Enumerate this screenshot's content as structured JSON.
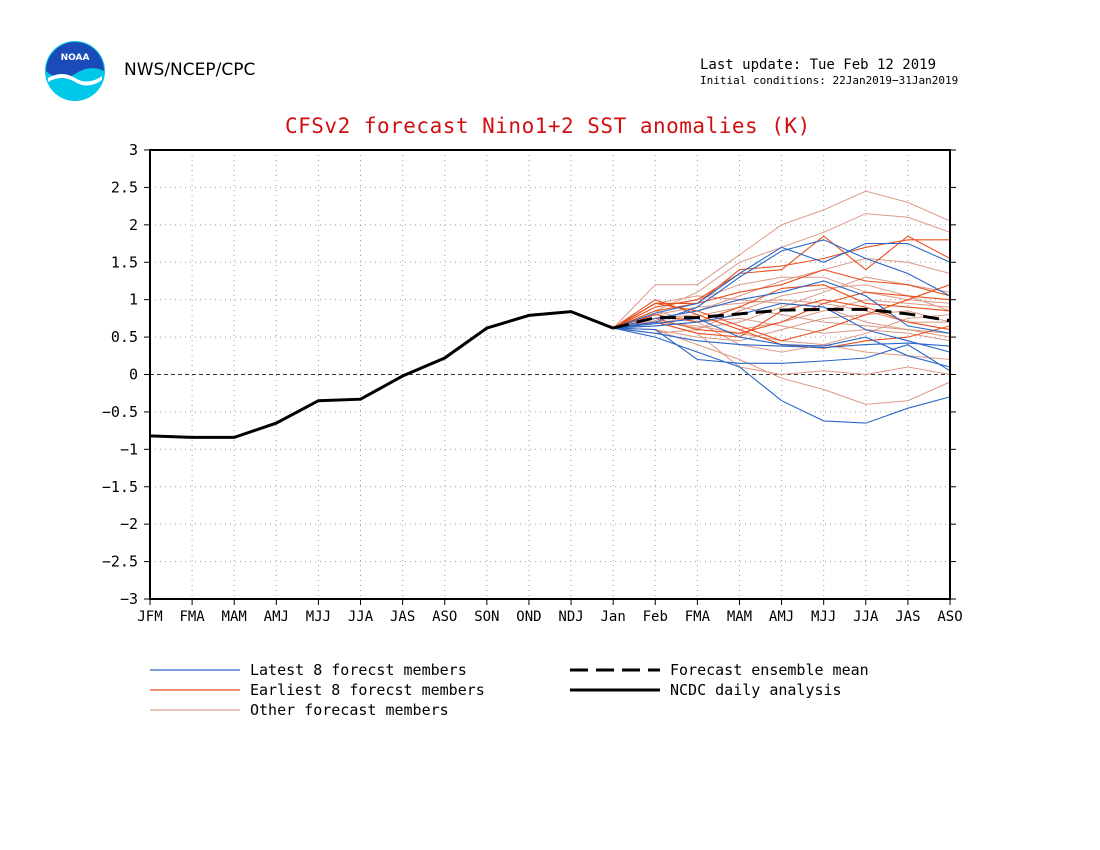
{
  "header": {
    "agency": "NWS/NCEP/CPC",
    "last_update": "Last update: Tue Feb 12 2019",
    "initial_conditions": "Initial conditions: 22Jan2019−31Jan2019",
    "logo_text": "NOAA"
  },
  "colors": {
    "title": "#d01010",
    "latest": "#2a66c8",
    "earliest": "#e8501e",
    "other": "#dc9a86",
    "analysis": "#000000",
    "grid": "#a0a0a0"
  },
  "legend": {
    "latest": "Latest 8 forecst members",
    "earliest": "Earliest 8 forecst members",
    "other": "Other forecast members",
    "mean": "Forecast ensemble mean",
    "analysis": "NCDC daily analysis"
  },
  "chart_data": {
    "type": "line",
    "title": "CFSv2 forecast Nino1+2 SST anomalies (K)",
    "categories": [
      "JFM",
      "FMA",
      "MAM",
      "AMJ",
      "MJJ",
      "JJA",
      "JAS",
      "ASO",
      "SON",
      "OND",
      "NDJ",
      "Jan",
      "Feb",
      "FMA",
      "MAM",
      "AMJ",
      "MJJ",
      "JJA",
      "JAS",
      "ASO"
    ],
    "ylim": [
      -3,
      3
    ],
    "yticks": [
      -3,
      -2.5,
      -2,
      -1.5,
      -1,
      -0.5,
      0,
      0.5,
      1,
      1.5,
      2,
      2.5,
      3
    ],
    "ytick_labels": [
      "−3",
      "−2.5",
      "−2",
      "−1.5",
      "−1",
      "−0.5",
      "0",
      "0.5",
      "1",
      "1.5",
      "2",
      "2.5",
      "3"
    ],
    "grid": true,
    "analysis": {
      "name": "NCDC daily analysis",
      "values": [
        -0.82,
        -0.84,
        -0.84,
        -0.65,
        -0.35,
        -0.33,
        -0.02,
        0.22,
        0.62,
        0.79,
        0.84,
        0.62
      ]
    },
    "ensemble_mean": {
      "name": "Forecast ensemble mean",
      "start_index": 11,
      "values": [
        0.62,
        0.76,
        0.76,
        0.81,
        0.86,
        0.87,
        0.87,
        0.81,
        0.72
      ]
    },
    "members": {
      "start_index": 11,
      "latest": [
        [
          0.62,
          0.55,
          0.45,
          0.4,
          0.38,
          0.36,
          0.4,
          0.42,
          0.38
        ],
        [
          0.62,
          0.5,
          0.3,
          0.1,
          -0.35,
          -0.62,
          -0.65,
          -0.45,
          -0.3
        ],
        [
          0.62,
          0.7,
          0.9,
          1.3,
          1.65,
          1.8,
          1.55,
          1.35,
          1.05
        ],
        [
          0.62,
          0.6,
          0.2,
          0.15,
          0.15,
          0.18,
          0.22,
          0.4,
          0.05
        ],
        [
          0.62,
          0.75,
          0.85,
          1.0,
          1.1,
          1.25,
          1.05,
          0.65,
          0.55
        ],
        [
          0.62,
          0.82,
          0.95,
          1.35,
          1.7,
          1.5,
          1.75,
          1.75,
          1.5
        ],
        [
          0.62,
          0.68,
          0.75,
          0.5,
          0.4,
          0.38,
          0.5,
          0.25,
          0.1
        ],
        [
          0.62,
          0.65,
          0.7,
          0.8,
          0.95,
          0.9,
          0.6,
          0.45,
          0.3
        ]
      ],
      "earliest": [
        [
          0.62,
          0.95,
          0.95,
          1.4,
          1.45,
          1.55,
          1.7,
          1.8,
          1.8
        ],
        [
          0.62,
          1.0,
          0.8,
          0.6,
          0.4,
          0.35,
          0.45,
          0.5,
          0.65
        ],
        [
          0.62,
          0.9,
          1.0,
          1.35,
          1.4,
          1.85,
          1.4,
          1.85,
          1.55
        ],
        [
          0.62,
          0.8,
          0.7,
          0.9,
          1.15,
          1.2,
          0.95,
          0.9,
          0.85
        ],
        [
          0.62,
          0.75,
          0.6,
          0.55,
          0.7,
          0.95,
          1.1,
          1.05,
          1.0
        ],
        [
          0.62,
          0.95,
          0.85,
          0.65,
          0.45,
          0.6,
          0.8,
          1.0,
          1.2
        ],
        [
          0.62,
          0.85,
          0.95,
          1.1,
          1.2,
          1.4,
          1.25,
          1.2,
          1.05
        ],
        [
          0.62,
          0.7,
          0.55,
          0.5,
          0.85,
          1.0,
          0.9,
          0.7,
          0.6
        ]
      ],
      "other": [
        [
          0.62,
          1.2,
          1.2,
          1.6,
          2.0,
          2.2,
          2.45,
          2.3,
          2.05
        ],
        [
          0.62,
          0.85,
          1.1,
          1.5,
          1.7,
          1.9,
          2.15,
          2.1,
          1.9
        ],
        [
          0.62,
          0.6,
          0.4,
          0.2,
          -0.05,
          -0.2,
          -0.4,
          -0.35,
          -0.1
        ],
        [
          0.62,
          0.7,
          0.55,
          0.1,
          0.0,
          0.05,
          0.0,
          0.1,
          0.0
        ],
        [
          0.62,
          0.75,
          0.8,
          0.6,
          0.7,
          0.85,
          1.0,
          0.95,
          0.9
        ],
        [
          0.62,
          0.9,
          1.0,
          1.2,
          1.3,
          1.3,
          1.1,
          1.0,
          0.95
        ],
        [
          0.62,
          0.65,
          0.7,
          0.75,
          0.65,
          0.55,
          0.6,
          0.55,
          0.45
        ],
        [
          0.62,
          0.8,
          0.9,
          0.95,
          1.0,
          0.95,
          0.85,
          0.7,
          0.7
        ],
        [
          0.62,
          0.55,
          0.6,
          0.85,
          1.05,
          1.15,
          1.2,
          1.05,
          0.85
        ],
        [
          0.62,
          0.7,
          0.65,
          0.55,
          0.45,
          0.4,
          0.3,
          0.25,
          0.2
        ],
        [
          0.62,
          0.85,
          0.7,
          0.4,
          0.3,
          0.4,
          0.55,
          0.75,
          0.8
        ],
        [
          0.62,
          0.75,
          0.85,
          1.05,
          1.25,
          1.4,
          1.55,
          1.5,
          1.35
        ],
        [
          0.62,
          0.6,
          0.5,
          0.45,
          0.6,
          0.75,
          0.8,
          0.85,
          0.7
        ],
        [
          0.62,
          0.95,
          1.05,
          1.0,
          0.95,
          0.9,
          0.7,
          0.6,
          0.5
        ],
        [
          0.62,
          0.68,
          0.78,
          0.9,
          0.8,
          0.7,
          0.65,
          0.6,
          0.55
        ],
        [
          0.62,
          0.72,
          0.62,
          0.7,
          0.9,
          1.1,
          1.3,
          1.2,
          1.1
        ]
      ]
    }
  }
}
